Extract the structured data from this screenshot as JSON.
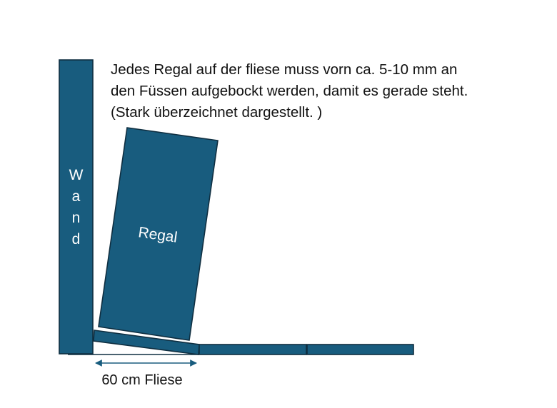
{
  "note": {
    "lines": [
      "Jedes Regal auf der fliese muss vorn ca. 5-10 mm an",
      "den Füssen aufgebockt werden, damit es gerade steht.",
      "(Stark überzeichnet dargestellt. )"
    ]
  },
  "wall": {
    "letters": [
      "W",
      "a",
      "n",
      "d"
    ]
  },
  "shelf": {
    "label": "Regal"
  },
  "dimension": {
    "label": "60 cm Fliese"
  },
  "colors": {
    "fill": "#185c7e",
    "outline": "#0f2e40",
    "text": "#111111"
  }
}
